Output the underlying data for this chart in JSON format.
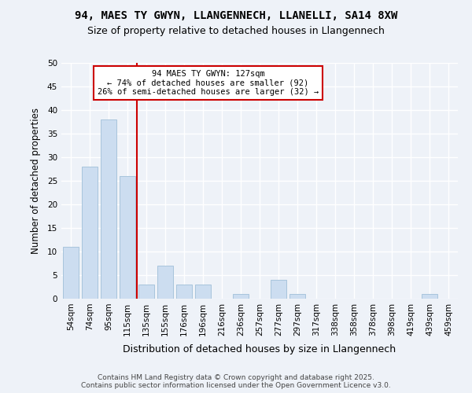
{
  "title1": "94, MAES TY GWYN, LLANGENNECH, LLANELLI, SA14 8XW",
  "title2": "Size of property relative to detached houses in Llangennech",
  "xlabel": "Distribution of detached houses by size in Llangennech",
  "ylabel": "Number of detached properties",
  "bins": [
    "54sqm",
    "74sqm",
    "95sqm",
    "115sqm",
    "135sqm",
    "155sqm",
    "176sqm",
    "196sqm",
    "216sqm",
    "236sqm",
    "257sqm",
    "277sqm",
    "297sqm",
    "317sqm",
    "338sqm",
    "358sqm",
    "378sqm",
    "398sqm",
    "419sqm",
    "439sqm",
    "459sqm"
  ],
  "values": [
    11,
    28,
    38,
    26,
    3,
    7,
    3,
    3,
    0,
    1,
    0,
    4,
    1,
    0,
    0,
    0,
    0,
    0,
    0,
    1,
    0
  ],
  "bar_color": "#ccddf0",
  "bar_edge_color": "#a8c4dc",
  "vline_x_index": 3.5,
  "vline_color": "#cc0000",
  "annotation_text": "94 MAES TY GWYN: 127sqm\n← 74% of detached houses are smaller (92)\n26% of semi-detached houses are larger (32) →",
  "annotation_box_color": "white",
  "annotation_box_edge": "#cc0000",
  "ylim": [
    0,
    50
  ],
  "yticks": [
    0,
    5,
    10,
    15,
    20,
    25,
    30,
    35,
    40,
    45,
    50
  ],
  "footer": "Contains HM Land Registry data © Crown copyright and database right 2025.\nContains public sector information licensed under the Open Government Licence v3.0.",
  "bg_color": "#eef2f8",
  "plot_bg_color": "#eef2f8",
  "title1_fontsize": 10,
  "title2_fontsize": 9,
  "ylabel_fontsize": 8.5,
  "xlabel_fontsize": 9,
  "tick_fontsize": 7.5,
  "footer_fontsize": 6.5,
  "annotation_fontsize": 7.5
}
